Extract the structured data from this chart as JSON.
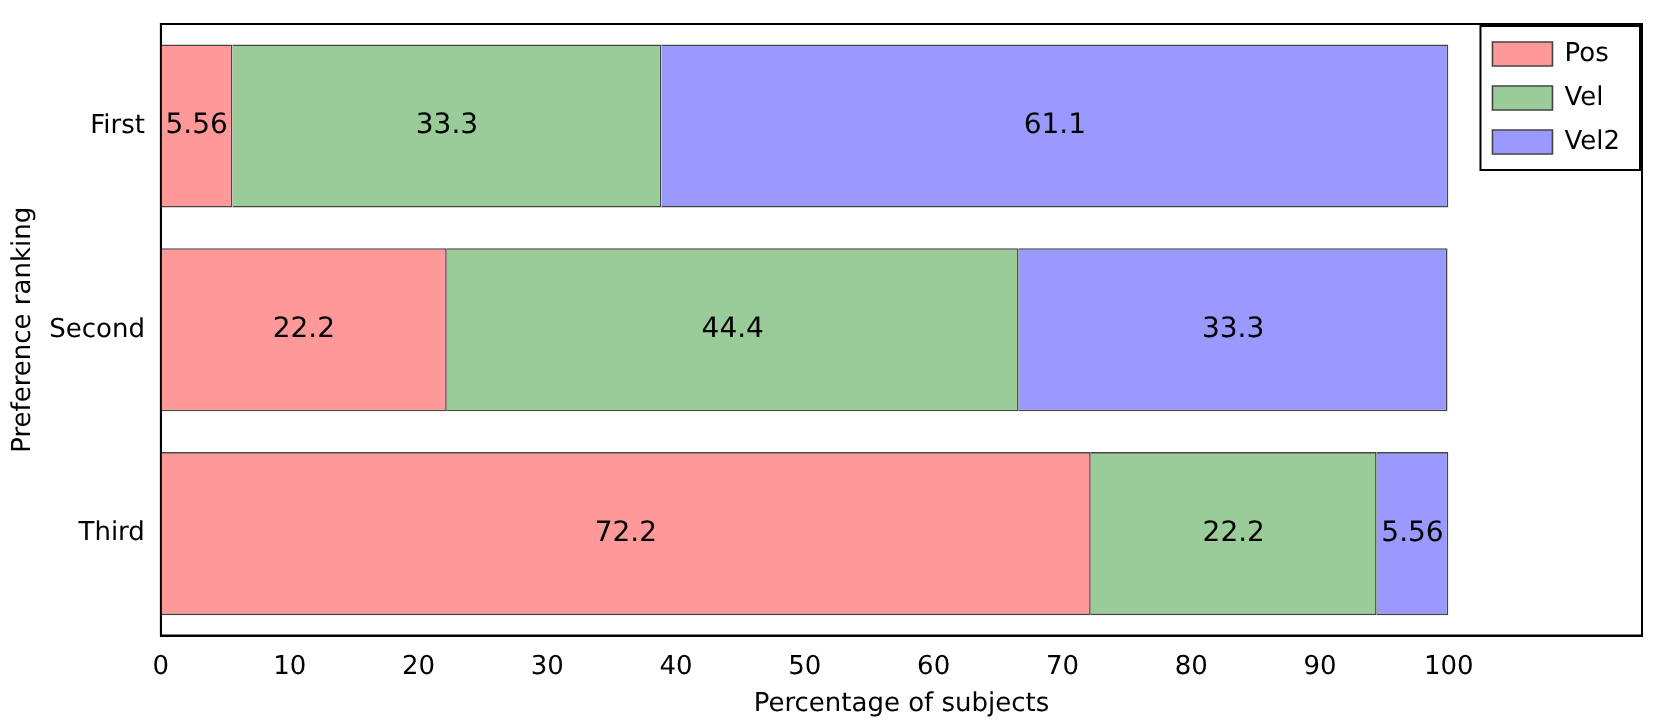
{
  "chart_data": {
    "type": "bar",
    "orientation": "horizontal",
    "stacked": true,
    "xlabel": "Percentage of subjects",
    "ylabel": "Preference ranking",
    "categories": [
      "First",
      "Second",
      "Third"
    ],
    "series": [
      {
        "name": "Pos",
        "color": "#ff9999",
        "values": [
          5.56,
          22.2,
          72.2
        ]
      },
      {
        "name": "Vel",
        "color": "#99cc99",
        "values": [
          33.3,
          44.4,
          22.2
        ]
      },
      {
        "name": "Vel2",
        "color": "#9999ff",
        "values": [
          61.1,
          33.3,
          5.56
        ]
      }
    ],
    "xlim": [
      0,
      115
    ],
    "xticks": [
      0,
      10,
      20,
      30,
      40,
      50,
      60,
      70,
      80,
      90,
      100
    ],
    "grid": false,
    "legend": "top right",
    "data_labels": true
  }
}
